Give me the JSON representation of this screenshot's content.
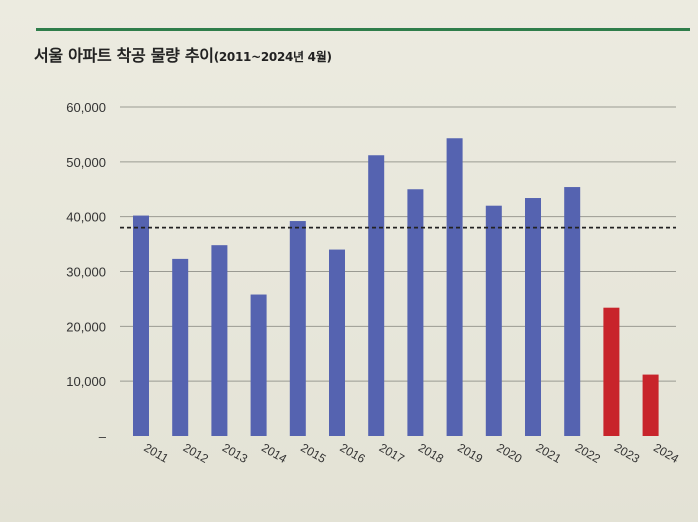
{
  "header": {
    "title_main": "서울 아파트 착공 물량 추이",
    "title_sub": "(2011~2024년 4월)"
  },
  "chart_data": {
    "type": "bar",
    "title": "서울 아파트 착공 물량 추이(2011~2024년 4월)",
    "xlabel": "",
    "ylabel": "",
    "ylim": [
      0,
      60000
    ],
    "yticks": [
      0,
      10000,
      20000,
      30000,
      40000,
      50000,
      60000
    ],
    "ytick_labels": [
      "–",
      "10,000",
      "20,000",
      "30,000",
      "40,000",
      "50,000",
      "60,000"
    ],
    "grid": true,
    "categories": [
      "2011",
      "2012",
      "2013",
      "2014",
      "2015",
      "2016",
      "2017",
      "2018",
      "2019",
      "2020",
      "2021",
      "2022",
      "2023",
      "2024"
    ],
    "values": [
      40200,
      32300,
      34800,
      25800,
      39200,
      34000,
      51200,
      45000,
      54300,
      42000,
      43400,
      45400,
      23400,
      11200
    ],
    "bar_colors": [
      "#5563b0",
      "#5563b0",
      "#5563b0",
      "#5563b0",
      "#5563b0",
      "#5563b0",
      "#5563b0",
      "#5563b0",
      "#5563b0",
      "#5563b0",
      "#5563b0",
      "#5563b0",
      "#c8242b",
      "#c8242b"
    ],
    "reference_line": {
      "value": 38000,
      "style": "dashed",
      "color": "#222222"
    },
    "colors": {
      "accent_rule": "#2f7d4a"
    }
  }
}
